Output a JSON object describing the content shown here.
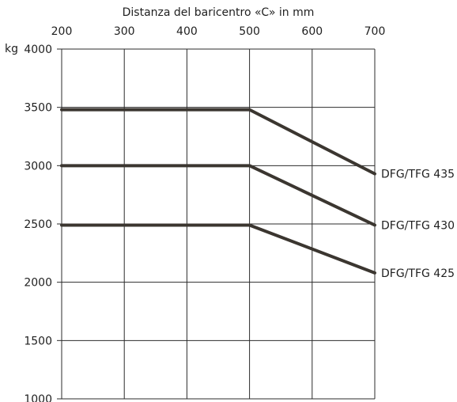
{
  "chart_data": {
    "type": "line",
    "title": "",
    "xlabel": "Distanza del baricentro «C» in mm",
    "ylabel": "kg",
    "xlim": [
      200,
      700
    ],
    "ylim": [
      1000,
      4000
    ],
    "x_ticks": [
      "200",
      "300",
      "400",
      "500",
      "600",
      "700"
    ],
    "y_ticks": [
      "4000",
      "3500",
      "3000",
      "2500",
      "2000",
      "1500",
      "1000"
    ],
    "grid": true,
    "series": [
      {
        "name": "DFG/TFG 435",
        "points": [
          [
            200,
            3480
          ],
          [
            500,
            3480
          ],
          [
            700,
            2930
          ]
        ]
      },
      {
        "name": "DFG/TFG 430",
        "points": [
          [
            200,
            3000
          ],
          [
            500,
            3000
          ],
          [
            700,
            2490
          ]
        ]
      },
      {
        "name": "DFG/TFG 425",
        "points": [
          [
            200,
            2490
          ],
          [
            500,
            2490
          ],
          [
            700,
            2080
          ]
        ]
      }
    ],
    "line_color": "#3b3630",
    "grid_color": "#2b2b2b"
  }
}
